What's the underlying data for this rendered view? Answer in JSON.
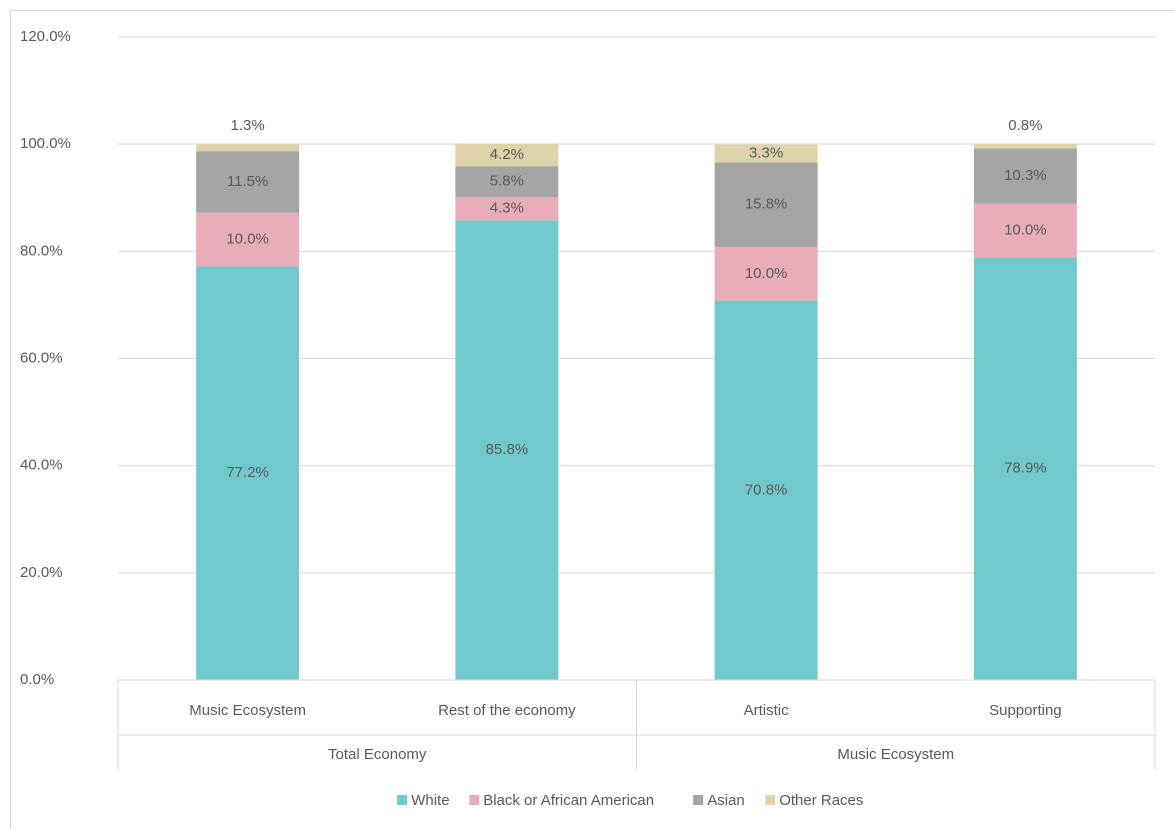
{
  "chart_data": {
    "type": "stacked_bar",
    "groups": [
      {
        "name": "Total Economy",
        "categories": [
          "Music Ecosystem",
          "Rest of the economy"
        ]
      },
      {
        "name": "Music Ecosystem",
        "categories": [
          "Artistic",
          "Supporting"
        ]
      }
    ],
    "series": [
      {
        "name": "White",
        "color": "#72c9cc",
        "values": [
          77.2,
          85.8,
          70.8,
          78.9
        ],
        "value_labels": [
          "77.2%",
          "85.8%",
          "70.8%",
          "78.9%"
        ]
      },
      {
        "name": "Black or African American",
        "color": "#e8adb8",
        "values": [
          10.0,
          4.3,
          10.0,
          10.0
        ],
        "value_labels": [
          "10.0%",
          "4.3%",
          "10.0%",
          "10.0%"
        ]
      },
      {
        "name": "Asian",
        "color": "#a5a5a5",
        "values": [
          11.5,
          5.8,
          15.8,
          10.3
        ],
        "value_labels": [
          "11.5%",
          "5.8%",
          "15.8%",
          "10.3%"
        ]
      },
      {
        "name": "Other Races",
        "color": "#dfd3aa",
        "values": [
          1.3,
          4.2,
          3.3,
          0.8
        ],
        "value_labels": [
          "1.3%",
          "4.2%",
          "3.3%",
          "0.8%"
        ]
      }
    ],
    "ylim": [
      0,
      120
    ],
    "yticks": [
      {
        "value": 0,
        "label": "0.0%"
      },
      {
        "value": 20,
        "label": "20.0%"
      },
      {
        "value": 40,
        "label": "40.0%"
      },
      {
        "value": 60,
        "label": "60.0%"
      },
      {
        "value": 80,
        "label": "80.0%"
      },
      {
        "value": 100,
        "label": "100.0%"
      },
      {
        "value": 120,
        "label": "120.0%"
      }
    ],
    "grid": true,
    "legend": "bottom"
  }
}
